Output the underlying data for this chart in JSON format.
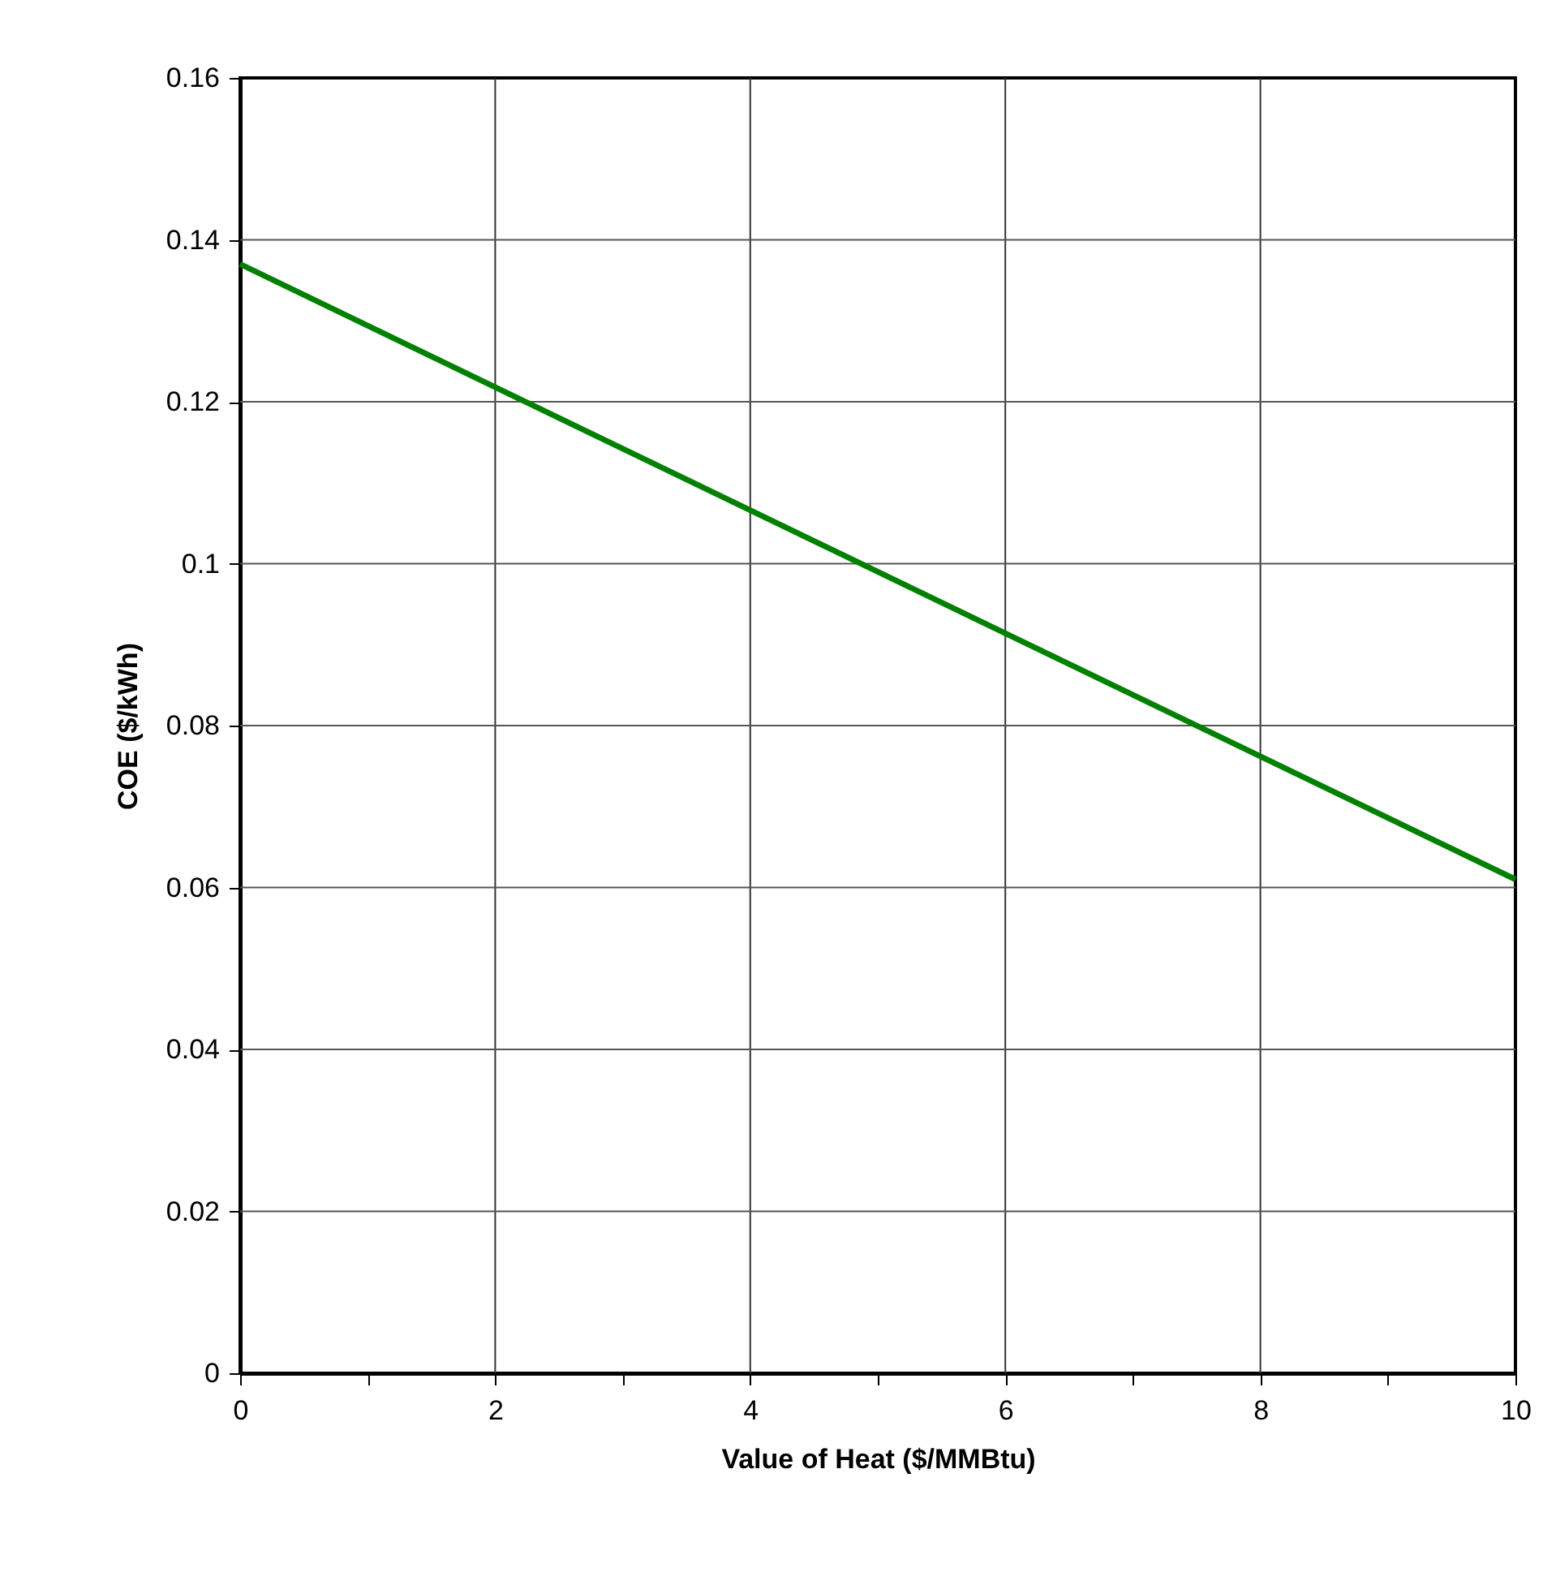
{
  "chart_data": {
    "type": "line",
    "xlabel": "Value of Heat ($/MMBtu)",
    "ylabel": "COE ($/kWh)",
    "x": [
      0,
      10
    ],
    "series": [
      {
        "color": "#008000",
        "values": [
          0.137,
          0.061
        ]
      }
    ],
    "xlim": [
      0,
      10
    ],
    "ylim": [
      0,
      0.16
    ],
    "xticks": [
      0,
      {
        "value": 1,
        "label": null
      },
      2,
      {
        "value": 3,
        "label": null
      },
      4,
      {
        "value": 5,
        "label": null
      },
      6,
      {
        "value": 7,
        "label": null
      },
      8,
      {
        "value": 9,
        "label": null
      },
      10
    ],
    "yticks": [
      0,
      0.02,
      0.04,
      0.06,
      0.08,
      0.1,
      0.12,
      0.14,
      0.16
    ],
    "grid": true,
    "legend": false,
    "marker": "none",
    "line_style": "solid"
  }
}
